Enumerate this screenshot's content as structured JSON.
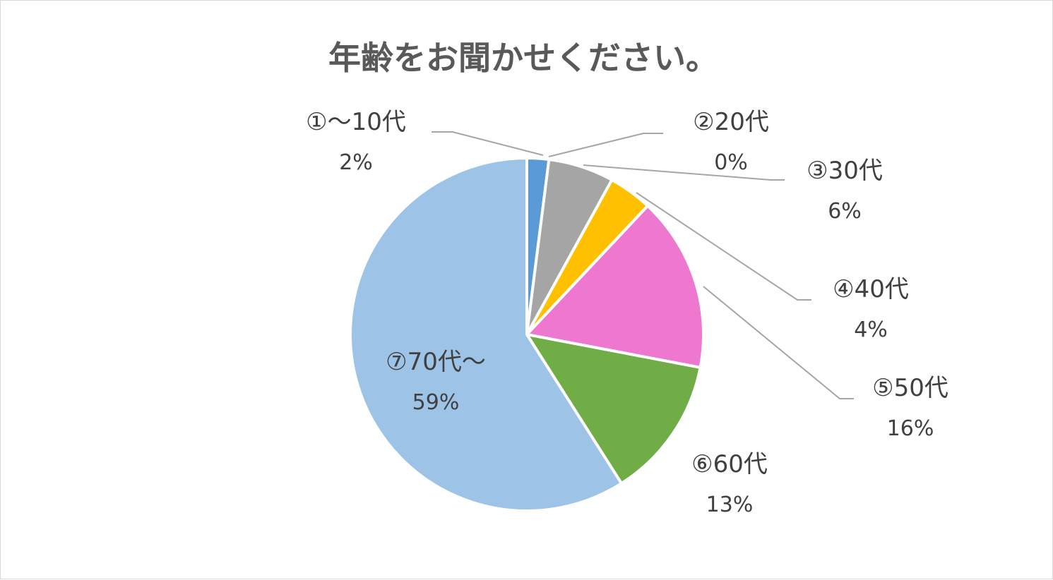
{
  "chart_data": {
    "type": "pie",
    "title": "年齢をお聞かせください。",
    "slices": [
      {
        "label": "①～10代",
        "value": 2,
        "value_label": "2%",
        "color": "#5b9bd5"
      },
      {
        "label": "②20代",
        "value": 0,
        "value_label": "0%",
        "color": "#ed7d31"
      },
      {
        "label": "③30代",
        "value": 6,
        "value_label": "6%",
        "color": "#a5a5a5"
      },
      {
        "label": "④40代",
        "value": 4,
        "value_label": "4%",
        "color": "#ffc000"
      },
      {
        "label": "⑤50代",
        "value": 16,
        "value_label": "16%",
        "color": "#ee77cf"
      },
      {
        "label": "⑥60代",
        "value": 13,
        "value_label": "13%",
        "color": "#70ad47"
      },
      {
        "label": "⑦70代～",
        "value": 59,
        "value_label": "59%",
        "color": "#9dc3e6"
      }
    ],
    "legend": "none",
    "data_labels": "outside-with-leader-lines"
  }
}
